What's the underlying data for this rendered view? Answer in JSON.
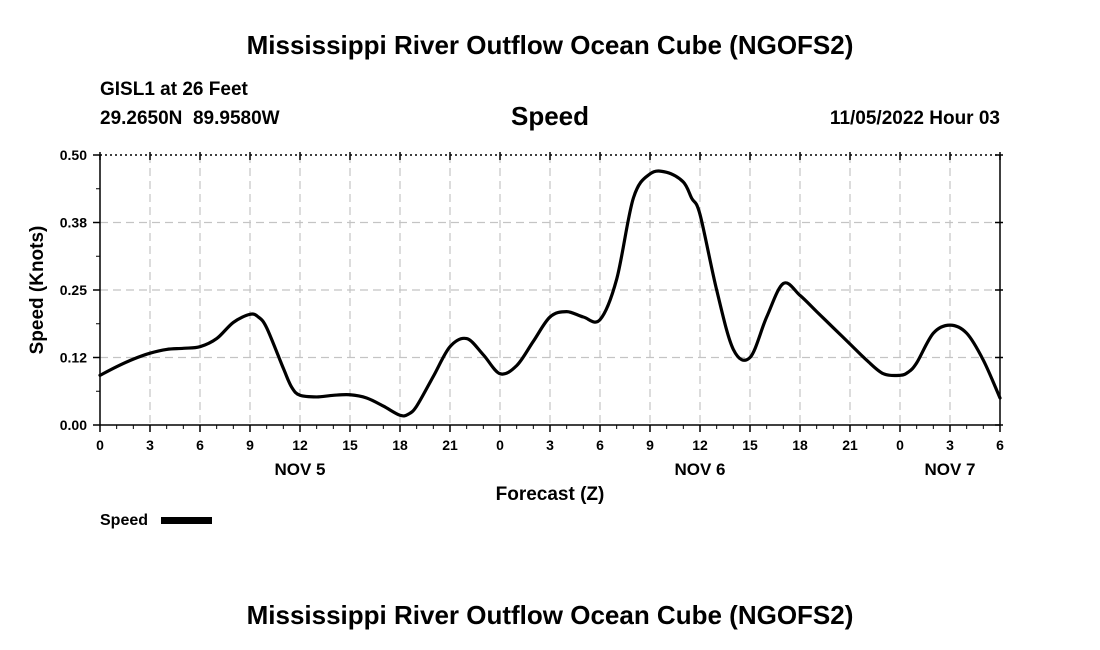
{
  "page": {
    "title": "Mississippi River Outflow Ocean Cube (NGOFS2)",
    "footer_title": "Mississippi River Outflow Ocean Cube (NGOFS2)"
  },
  "header": {
    "station": "GISL1 at 26 Feet",
    "coords": "29.2650N  89.9580W",
    "parameter": "Speed",
    "datetime": "11/05/2022 Hour 03"
  },
  "legend": {
    "label": "Speed",
    "color": "#000000"
  },
  "chart_data": {
    "type": "line",
    "title": "Speed",
    "xlabel": "Forecast (Z)",
    "ylabel": "Speed (Knots)",
    "xlim": [
      0,
      54
    ],
    "ylim": [
      0,
      0.5
    ],
    "grid": true,
    "x_ticks": [
      0,
      3,
      6,
      9,
      12,
      15,
      18,
      21,
      24,
      27,
      30,
      33,
      36,
      39,
      42,
      45,
      48,
      51,
      54
    ],
    "x_tick_labels": [
      "0",
      "3",
      "6",
      "9",
      "12",
      "15",
      "18",
      "21",
      "0",
      "3",
      "6",
      "9",
      "12",
      "15",
      "18",
      "21",
      "0",
      "3",
      "6"
    ],
    "y_ticks": [
      0,
      0.125,
      0.25,
      0.375,
      0.5
    ],
    "y_tick_labels": [
      "0.00",
      "0.12",
      "0.25",
      "0.38",
      "0.50"
    ],
    "date_labels": [
      {
        "x": 12,
        "text": "NOV 5"
      },
      {
        "x": 36,
        "text": "NOV 6"
      },
      {
        "x": 51,
        "text": "NOV 7"
      }
    ],
    "series": [
      {
        "name": "Speed",
        "color": "#000000",
        "x": [
          0,
          1,
          2,
          3,
          4,
          5,
          6,
          7,
          8,
          9,
          9.5,
          10,
          11,
          11.5,
          12,
          13,
          14,
          15,
          16,
          17,
          18,
          18.5,
          19,
          20,
          21,
          22,
          23,
          24,
          25,
          26,
          27,
          28,
          29,
          30,
          31,
          32,
          33,
          34,
          35,
          35.5,
          36,
          37,
          38,
          39,
          40,
          41,
          42,
          43,
          44,
          45,
          46,
          47,
          48,
          48.5,
          49,
          50,
          51,
          52,
          53,
          54
        ],
        "values": [
          0.092,
          0.108,
          0.122,
          0.133,
          0.14,
          0.142,
          0.145,
          0.16,
          0.19,
          0.205,
          0.2,
          0.18,
          0.105,
          0.07,
          0.055,
          0.052,
          0.055,
          0.056,
          0.05,
          0.035,
          0.018,
          0.02,
          0.035,
          0.09,
          0.145,
          0.16,
          0.13,
          0.095,
          0.11,
          0.155,
          0.2,
          0.21,
          0.2,
          0.195,
          0.27,
          0.42,
          0.465,
          0.468,
          0.45,
          0.42,
          0.39,
          0.25,
          0.14,
          0.125,
          0.2,
          0.262,
          0.24,
          0.21,
          0.18,
          0.15,
          0.12,
          0.095,
          0.092,
          0.098,
          0.115,
          0.17,
          0.185,
          0.17,
          0.12,
          0.05
        ]
      }
    ]
  }
}
